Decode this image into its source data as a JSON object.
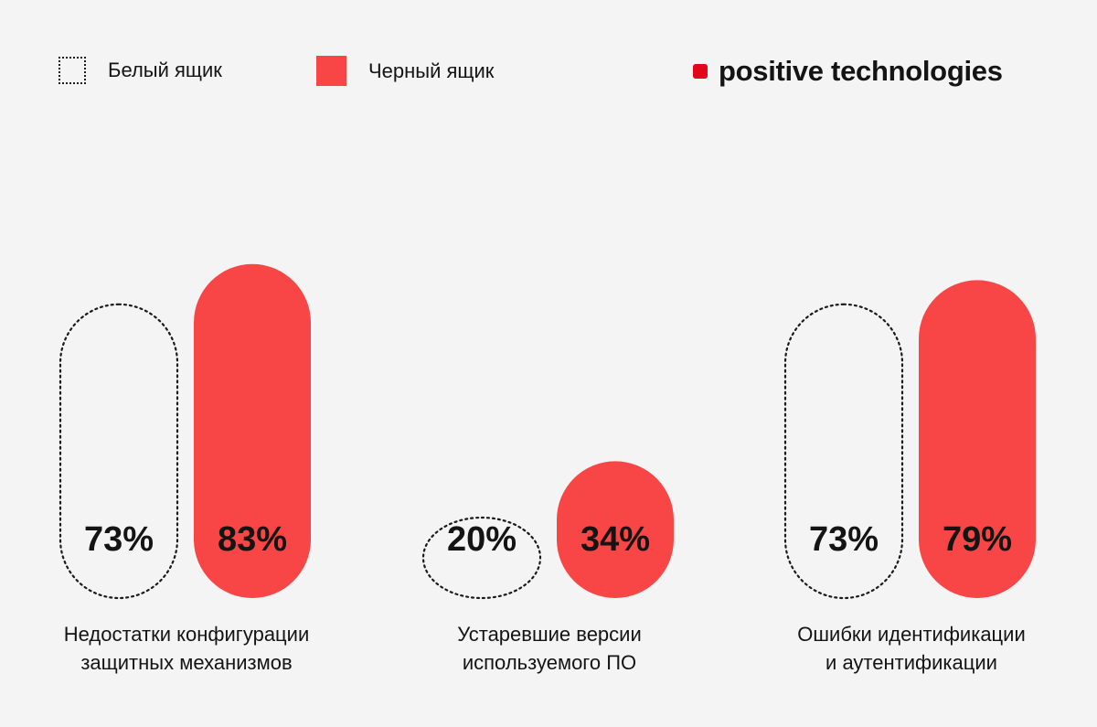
{
  "legend": {
    "white_box": "Белый ящик",
    "black_box": "Черный ящик"
  },
  "logo": {
    "text": "positive technologies",
    "color": "#e3061a"
  },
  "colors": {
    "accent": "#f84545",
    "text": "#141414",
    "background": "#f4f4f4"
  },
  "chart_data": {
    "type": "bar",
    "categories": [
      [
        "Недостатки конфигурации",
        "защитных механизмов"
      ],
      [
        "Устаревшие версии",
        "используемого ПО"
      ],
      [
        "Ошибки идентификации",
        "и аутентификации"
      ]
    ],
    "series": [
      {
        "name": "Белый ящик",
        "style": "dotted-outline",
        "values": [
          73,
          20,
          73
        ],
        "labels": [
          "73%",
          "20%",
          "73%"
        ]
      },
      {
        "name": "Черный ящик",
        "style": "filled-red",
        "values": [
          83,
          34,
          79
        ],
        "labels": [
          "83%",
          "34%",
          "79%"
        ]
      }
    ],
    "unit": "%",
    "ylim": [
      0,
      100
    ],
    "grid": false,
    "legend_position": "top-left"
  }
}
